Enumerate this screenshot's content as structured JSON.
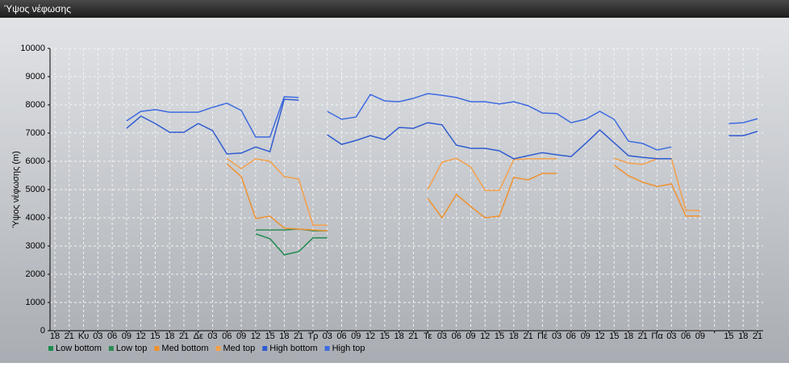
{
  "window_title": "Ύψος νέφωσης",
  "chart_data": {
    "type": "line",
    "ylabel": "Ύψος νέφωσης (m)",
    "categories": [
      "18",
      "21",
      "Κυ",
      "03",
      "06",
      "09",
      "12",
      "15",
      "18",
      "21",
      "Δε",
      "03",
      "06",
      "09",
      "12",
      "15",
      "18",
      "21",
      "Τρ",
      "03",
      "06",
      "09",
      "12",
      "15",
      "18",
      "21",
      "Τε",
      "03",
      "06",
      "09",
      "12",
      "15",
      "18",
      "21",
      "Πέ",
      "03",
      "06",
      "09",
      "12",
      "15",
      "18",
      "21",
      "Πα",
      "03",
      "06",
      "09",
      null,
      "15",
      "18",
      "21"
    ],
    "ylim": [
      0,
      10000
    ],
    "yticks": [
      0,
      1000,
      2000,
      3000,
      4000,
      5000,
      6000,
      7000,
      8000,
      9000,
      10000
    ],
    "grid": true,
    "legend": "bottom",
    "series": [
      {
        "name": "Low bottom",
        "color": "#1e8a4e",
        "values": [
          null,
          null,
          null,
          null,
          null,
          null,
          null,
          null,
          null,
          null,
          null,
          null,
          null,
          null,
          3430,
          3260,
          2690,
          2800,
          3290,
          3290,
          null,
          null,
          null,
          null,
          null,
          null,
          null,
          null,
          null,
          null,
          null,
          null,
          null,
          null,
          null,
          null,
          null,
          null,
          null,
          null,
          null,
          null,
          null,
          null,
          null,
          null,
          null,
          null,
          null,
          null
        ]
      },
      {
        "name": "Low top",
        "color": "#2e8b57",
        "values": [
          null,
          null,
          null,
          null,
          null,
          null,
          null,
          null,
          null,
          null,
          null,
          null,
          null,
          null,
          3570,
          3570,
          3570,
          3600,
          3540,
          3540,
          null,
          null,
          null,
          null,
          null,
          null,
          null,
          null,
          null,
          null,
          null,
          null,
          null,
          null,
          null,
          null,
          null,
          null,
          null,
          null,
          null,
          null,
          null,
          null,
          null,
          null,
          null,
          null,
          null,
          null
        ]
      },
      {
        "name": "Med bottom",
        "color": "#f0922e",
        "values": [
          null,
          null,
          null,
          null,
          null,
          null,
          null,
          null,
          null,
          null,
          null,
          null,
          5910,
          5460,
          3970,
          4060,
          3630,
          3600,
          3570,
          3540,
          null,
          null,
          null,
          null,
          null,
          null,
          4690,
          4000,
          4830,
          4400,
          4000,
          4060,
          5430,
          5340,
          5570,
          5570,
          null,
          null,
          null,
          5860,
          5490,
          5260,
          5110,
          5200,
          4060,
          4060,
          null,
          null,
          null,
          null
        ]
      },
      {
        "name": "Med top",
        "color": "#f5a04a",
        "values": [
          null,
          null,
          null,
          null,
          null,
          null,
          null,
          null,
          null,
          null,
          null,
          null,
          6090,
          5740,
          6090,
          6000,
          5460,
          5370,
          3740,
          3740,
          null,
          null,
          null,
          null,
          null,
          null,
          5000,
          5970,
          6110,
          5800,
          4970,
          4970,
          6060,
          6090,
          6090,
          6090,
          null,
          null,
          null,
          6110,
          5940,
          5890,
          6090,
          6090,
          4260,
          4260,
          null,
          null,
          null,
          null
        ]
      },
      {
        "name": "High bottom",
        "color": "#2f5bd0",
        "values": [
          null,
          null,
          null,
          null,
          null,
          7170,
          7600,
          7340,
          7030,
          7030,
          7340,
          7090,
          6260,
          6290,
          6510,
          6340,
          8200,
          8170,
          null,
          6940,
          6600,
          6740,
          6910,
          6770,
          7200,
          7170,
          7370,
          7290,
          6570,
          6460,
          6460,
          6370,
          6090,
          6200,
          6310,
          6230,
          6170,
          6630,
          7110,
          6660,
          6200,
          6140,
          6090,
          6090,
          null,
          null,
          null,
          6910,
          6910,
          7060
        ]
      },
      {
        "name": "High top",
        "color": "#3d6ae0",
        "values": [
          null,
          null,
          null,
          null,
          null,
          7430,
          7770,
          7830,
          7740,
          7740,
          7740,
          7910,
          8060,
          7800,
          6860,
          6860,
          8290,
          8260,
          null,
          7770,
          7490,
          7570,
          8370,
          8140,
          8110,
          8230,
          8400,
          8340,
          8260,
          8110,
          8110,
          8030,
          8110,
          7970,
          7710,
          7690,
          7370,
          7490,
          7770,
          7490,
          6710,
          6630,
          6400,
          6510,
          null,
          null,
          null,
          7340,
          7370,
          7510
        ]
      }
    ]
  }
}
